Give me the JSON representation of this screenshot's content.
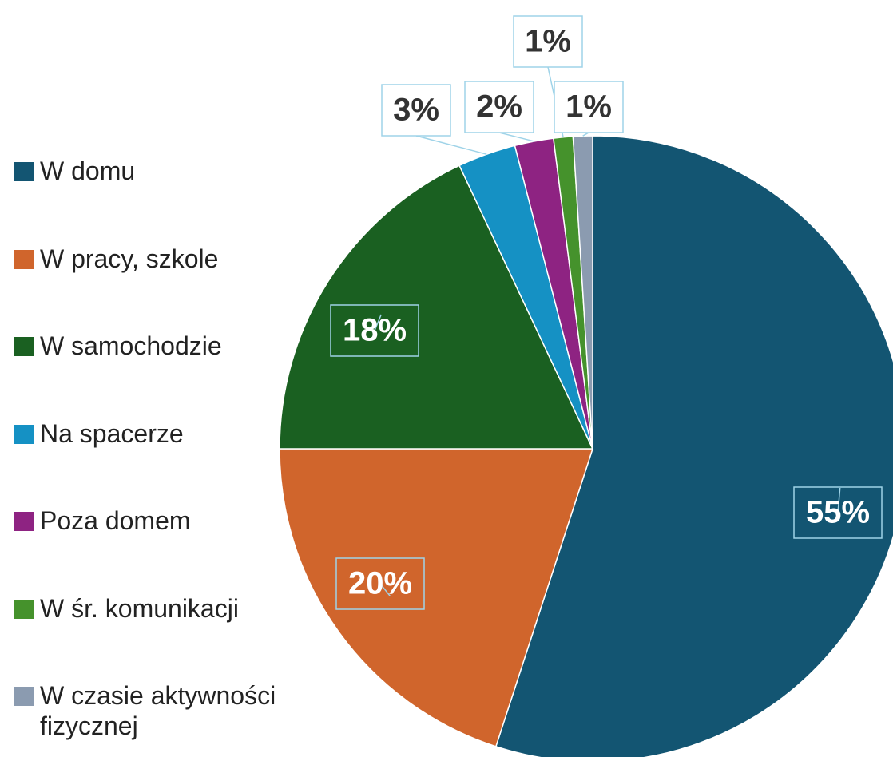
{
  "chart_data": {
    "type": "pie",
    "categories": [
      "W domu",
      "W pracy, szkole",
      "W samochodzie",
      "Na spacerze",
      "Poza domem",
      "W śr. komunikacji",
      "W czasie aktywności fizycznej"
    ],
    "values": [
      55,
      20,
      18,
      3,
      2,
      1,
      1
    ],
    "value_labels": [
      "55%",
      "20%",
      "18%",
      "3%",
      "2%",
      "1%",
      "1%"
    ],
    "colors": [
      "#135572",
      "#d0652c",
      "#1a6021",
      "#1591c4",
      "#8e2382",
      "#45922c",
      "#8b9bb0"
    ],
    "legend": "left"
  }
}
